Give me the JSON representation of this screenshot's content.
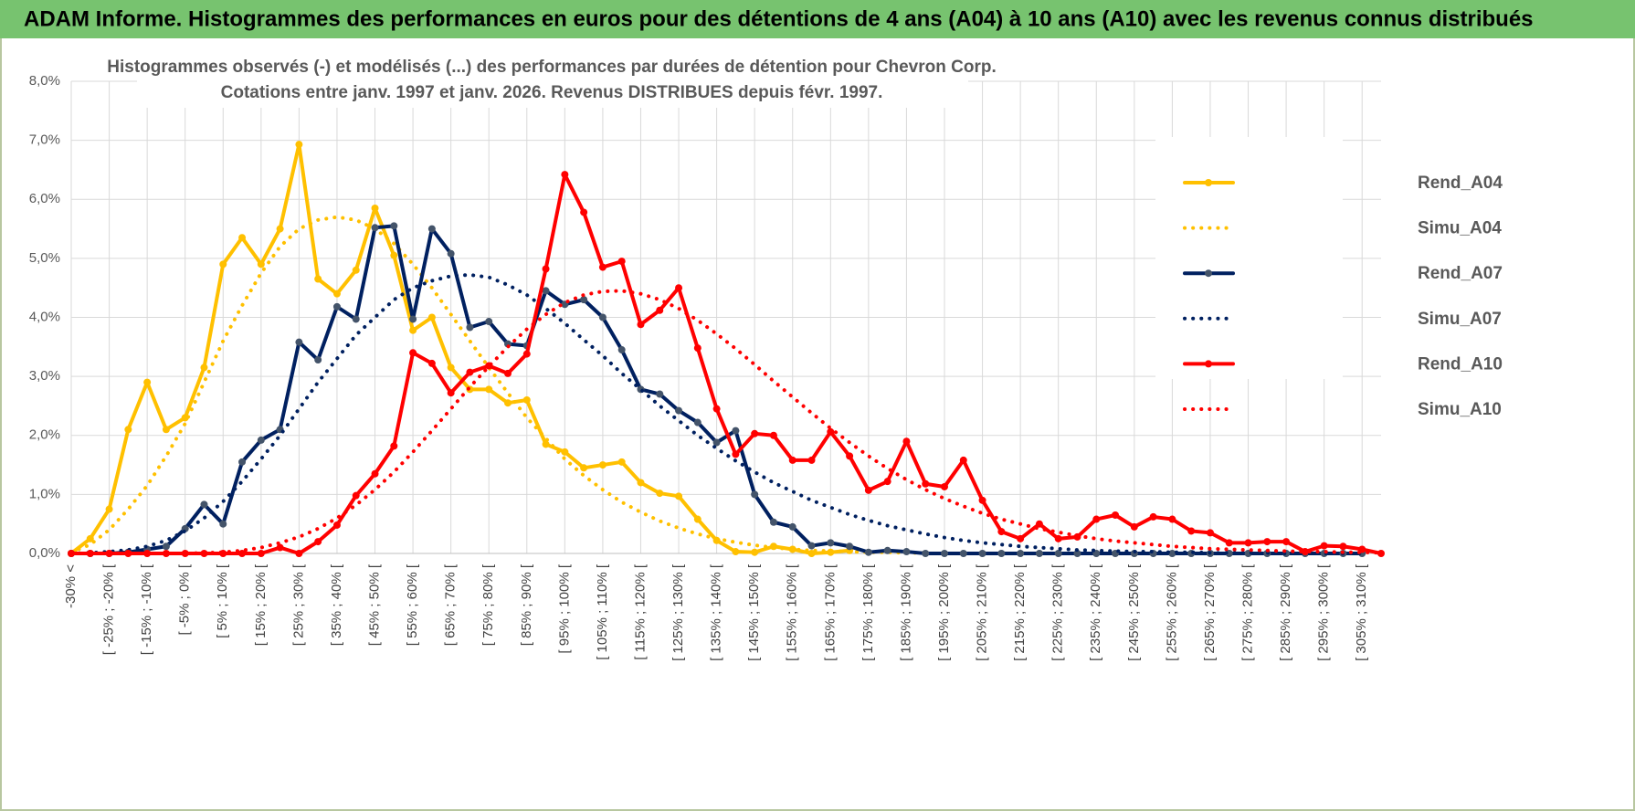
{
  "header": {
    "title": "ADAM Informe. Histogrammes des performances en euros pour des détentions de 4 ans (A04) à 10 ans (A10) avec les revenus connus distribués"
  },
  "chart_data": {
    "type": "line",
    "title": "Histogrammes observés (-) et modélisés (...) des performances par durées de détention pour Chevron Corp.",
    "subtitle": "Cotations entre janv. 1997 et janv. 2026. Revenus DISTRIBUES depuis févr. 1997.",
    "categories": [
      "-30% <",
      null,
      "[ -25% ; -20% [",
      null,
      "[ -15% ; -10% [",
      null,
      "[ -5% ; 0% [",
      null,
      "[ 5% ; 10% [",
      null,
      "[ 15% ; 20% [",
      null,
      "[ 25% ; 30% [",
      null,
      "[ 35% ; 40% [",
      null,
      "[ 45% ; 50% [",
      null,
      "[ 55% ; 60% [",
      null,
      "[ 65% ; 70% [",
      null,
      "[ 75% ; 80% [",
      null,
      "[ 85% ; 90% [",
      null,
      "[ 95% ; 100% [",
      null,
      "[ 105% ; 110% [",
      null,
      "[ 115% ; 120% [",
      null,
      "[ 125% ; 130% [",
      null,
      "[ 135% ; 140% [",
      null,
      "[ 145% ; 150% [",
      null,
      "[ 155% ; 160% [",
      null,
      "[ 165% ; 170% [",
      null,
      "[ 175% ; 180% [",
      null,
      "[ 185% ; 190% [",
      null,
      "[ 195% ; 200% [",
      null,
      "[ 205% ; 210% [",
      null,
      "[ 215% ; 220% [",
      null,
      "[ 225% ; 230% [",
      null,
      "[ 235% ; 240% [",
      null,
      "[ 245% ; 250% [",
      null,
      "[ 255% ; 260% [",
      null,
      "[ 265% ; 270% [",
      null,
      "[ 275% ; 280% [",
      null,
      "[ 285% ; 290% [",
      null,
      "[ 295% ; 300% [",
      null,
      "[ 305% ; 310% [",
      null
    ],
    "series": [
      {
        "name": "Rend_A04",
        "color": "#FFC000",
        "marker_color": "#FFC000",
        "dash": "solid",
        "marker": true,
        "values": [
          0,
          0.25,
          0.75,
          2.1,
          2.9,
          2.1,
          2.3,
          3.15,
          4.9,
          5.35,
          4.9,
          5.5,
          6.93,
          4.65,
          4.4,
          4.8,
          5.85,
          5.05,
          3.78,
          4.0,
          3.15,
          2.78,
          2.78,
          2.55,
          2.6,
          1.85,
          1.72,
          1.45,
          1.5,
          1.55,
          1.2,
          1.02,
          0.97,
          0.58,
          0.22,
          0.03,
          0.02,
          0.12,
          0.07,
          0.0,
          0.02,
          0.05,
          null,
          null,
          null,
          null,
          null,
          null,
          null,
          null,
          null,
          null,
          null,
          null,
          null,
          null,
          null,
          null,
          null,
          null,
          null,
          null,
          null,
          null,
          null,
          null,
          null,
          null,
          null,
          null
        ]
      },
      {
        "name": "Simu_A04",
        "color": "#FFC000",
        "dash": "dotted",
        "marker": false,
        "values": [
          0.02,
          0.15,
          0.4,
          0.75,
          1.15,
          1.65,
          2.2,
          2.9,
          3.6,
          4.2,
          4.75,
          5.2,
          5.5,
          5.65,
          5.7,
          5.65,
          5.5,
          5.25,
          4.9,
          4.5,
          4.05,
          3.6,
          3.15,
          2.72,
          2.3,
          1.95,
          1.6,
          1.32,
          1.08,
          0.87,
          0.7,
          0.55,
          0.43,
          0.33,
          0.25,
          0.19,
          0.14,
          0.1,
          0.07,
          0.05,
          0.04,
          0.03,
          0.02,
          0.02,
          0.01,
          0.01,
          null,
          null,
          null,
          null,
          null,
          null,
          null,
          null,
          null,
          null,
          null,
          null,
          null,
          null,
          null,
          null,
          null,
          null,
          null,
          null,
          null,
          null,
          null,
          null
        ]
      },
      {
        "name": "Rend_A07",
        "color": "#002060",
        "marker_color": "#44546A",
        "dash": "solid",
        "marker": true,
        "values": [
          0,
          0,
          0,
          0.02,
          0.07,
          0.12,
          0.42,
          0.83,
          0.5,
          1.55,
          1.92,
          2.1,
          3.58,
          3.28,
          4.18,
          3.97,
          5.52,
          5.55,
          3.97,
          5.5,
          5.08,
          3.83,
          3.93,
          3.55,
          3.52,
          4.45,
          4.22,
          4.3,
          4.0,
          3.45,
          2.78,
          2.7,
          2.42,
          2.22,
          1.88,
          2.08,
          1.0,
          0.53,
          0.45,
          0.13,
          0.18,
          0.12,
          0.02,
          0.05,
          0.03,
          0,
          0,
          0,
          0,
          0,
          0,
          0,
          0,
          0,
          0,
          0,
          0,
          0,
          0,
          0,
          0,
          0,
          0,
          0,
          0,
          0,
          0,
          0,
          0,
          null
        ]
      },
      {
        "name": "Simu_A07",
        "color": "#002060",
        "dash": "dotted",
        "marker": false,
        "values": [
          0,
          0.01,
          0.03,
          0.06,
          0.12,
          0.22,
          0.38,
          0.6,
          0.88,
          1.22,
          1.6,
          2.0,
          2.45,
          2.9,
          3.3,
          3.7,
          4.0,
          4.3,
          4.5,
          4.62,
          4.7,
          4.72,
          4.68,
          4.55,
          4.38,
          4.15,
          3.9,
          3.62,
          3.35,
          3.05,
          2.78,
          2.5,
          2.25,
          2.0,
          1.78,
          1.57,
          1.38,
          1.2,
          1.05,
          0.9,
          0.78,
          0.66,
          0.56,
          0.47,
          0.4,
          0.33,
          0.27,
          0.22,
          0.18,
          0.15,
          0.12,
          0.1,
          0.08,
          0.06,
          0.05,
          0.04,
          0.03,
          0.03,
          0.02,
          0.02,
          0.01,
          0.01,
          0.01,
          0.01,
          0.0,
          0.0,
          0.0,
          0.0,
          0.0,
          null
        ]
      },
      {
        "name": "Rend_A10",
        "color": "#FF0000",
        "marker_color": "#FF0000",
        "dash": "solid",
        "marker": true,
        "values": [
          0,
          0,
          0,
          0,
          0,
          0,
          0,
          0,
          0,
          0,
          0,
          0.1,
          0,
          0.2,
          0.48,
          0.98,
          1.35,
          1.82,
          3.4,
          3.22,
          2.72,
          3.07,
          3.18,
          3.05,
          3.38,
          4.82,
          6.42,
          5.78,
          4.85,
          4.95,
          3.88,
          4.12,
          4.5,
          3.48,
          2.45,
          1.68,
          2.03,
          2.0,
          1.58,
          1.58,
          2.06,
          1.65,
          1.07,
          1.22,
          1.9,
          1.18,
          1.13,
          1.58,
          0.9,
          0.37,
          0.25,
          0.5,
          0.25,
          0.28,
          0.58,
          0.65,
          0.45,
          0.62,
          0.58,
          0.38,
          0.35,
          0.18,
          0.18,
          0.2,
          0.2,
          0.03,
          0.13,
          0.12,
          0.07,
          0
        ]
      },
      {
        "name": "Simu_A10",
        "color": "#FF0000",
        "dash": "dotted",
        "marker": false,
        "values": [
          0,
          0,
          0,
          0,
          0,
          0,
          0,
          0.01,
          0.02,
          0.05,
          0.1,
          0.18,
          0.28,
          0.42,
          0.6,
          0.82,
          1.08,
          1.38,
          1.72,
          2.08,
          2.45,
          2.82,
          3.17,
          3.5,
          3.8,
          4.05,
          4.25,
          4.38,
          4.44,
          4.45,
          4.4,
          4.3,
          4.15,
          3.95,
          3.72,
          3.47,
          3.2,
          2.92,
          2.65,
          2.38,
          2.12,
          1.88,
          1.65,
          1.44,
          1.25,
          1.08,
          0.93,
          0.8,
          0.68,
          0.58,
          0.5,
          0.42,
          0.36,
          0.3,
          0.25,
          0.21,
          0.18,
          0.15,
          0.12,
          0.1,
          0.08,
          0.07,
          0.06,
          0.05,
          0.04,
          0.03,
          0.03,
          0.02,
          0.02,
          0.01
        ]
      }
    ],
    "ylim": [
      0,
      8
    ],
    "yticks": [
      {
        "value": 0,
        "label": "0,0%"
      },
      {
        "value": 1,
        "label": "1,0%"
      },
      {
        "value": 2,
        "label": "2,0%"
      },
      {
        "value": 3,
        "label": "3,0%"
      },
      {
        "value": 4,
        "label": "4,0%"
      },
      {
        "value": 5,
        "label": "5,0%"
      },
      {
        "value": 6,
        "label": "6,0%"
      },
      {
        "value": 7,
        "label": "7,0%"
      },
      {
        "value": 8,
        "label": "8,0%"
      }
    ],
    "grid": true,
    "legend": "right"
  }
}
